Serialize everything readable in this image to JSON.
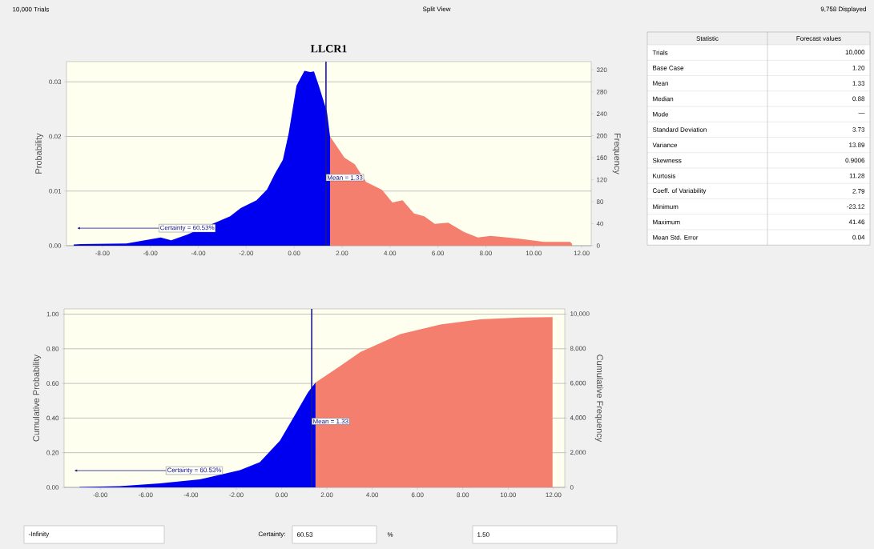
{
  "chart_data": [
    {
      "type": "area",
      "title": "LLCR1",
      "ylabel": "Probability",
      "y2label": "Frequency",
      "series": [
        {
          "color": "#0000f0",
          "x": [
            -9.2,
            -8.9,
            -7.0,
            -5.57,
            -5.13,
            -4.47,
            -2.67,
            -2.23,
            -1.57,
            -1.13,
            -0.8,
            -0.47,
            -0.23,
            0.1,
            0.43,
            0.67,
            0.83,
            1.03,
            1.37,
            1.5
          ],
          "values": [
            0.0002,
            0.0003,
            0.0004,
            0.0015,
            0.001,
            0.002,
            0.0054,
            0.0069,
            0.0083,
            0.0103,
            0.0132,
            0.0157,
            0.0205,
            0.0293,
            0.032,
            0.0318,
            0.0319,
            0.0293,
            0.0245,
            0.02
          ]
        },
        {
          "color": "#f47f6e",
          "x": [
            1.5,
            2.1,
            2.53,
            3.0,
            3.67,
            4.1,
            4.53,
            5.0,
            5.43,
            5.87,
            6.43,
            7.1,
            7.67,
            8.2,
            9.33,
            10.43,
            11.53,
            11.6
          ],
          "values": [
            0.02,
            0.0161,
            0.0149,
            0.0117,
            0.0102,
            0.0079,
            0.0083,
            0.0059,
            0.0054,
            0.004,
            0.0042,
            0.0025,
            0.0015,
            0.0018,
            0.0013,
            0.0007,
            0.0007,
            0.0003
          ]
        }
      ],
      "xlim": [
        -9.5,
        12.4
      ],
      "ylim": [
        0,
        0.0337
      ],
      "y2lim": [
        0,
        335
      ],
      "xticks": [
        {
          "value": -8,
          "label": "-8.00"
        },
        {
          "value": -6,
          "label": "-6.00"
        },
        {
          "value": -4,
          "label": "-4.00"
        },
        {
          "value": -2,
          "label": "-2.00"
        },
        {
          "value": 0,
          "label": "0.00"
        },
        {
          "value": 2,
          "label": "2.00"
        },
        {
          "value": 4,
          "label": "4.00"
        },
        {
          "value": 6,
          "label": "6.00"
        },
        {
          "value": 8,
          "label": "8.00"
        },
        {
          "value": 10,
          "label": "10.00"
        },
        {
          "value": 12,
          "label": "12.00"
        }
      ],
      "yticks": [
        {
          "value": 0,
          "label": "0.00"
        },
        {
          "value": 0.01,
          "label": "0.01"
        },
        {
          "value": 0.02,
          "label": "0.02"
        },
        {
          "value": 0.03,
          "label": "0.03"
        }
      ],
      "y2ticks": [
        0,
        40,
        80,
        120,
        160,
        200,
        240,
        280,
        320
      ],
      "grid": "y",
      "ref_lines": [
        {
          "axis": "x",
          "value": 1.33,
          "label": "Mean = 1.33",
          "color": "#1a1a8c"
        }
      ],
      "annotations": [
        "Certainty = 60.53%"
      ]
    },
    {
      "type": "area",
      "ylabel": "Cumulative Probability",
      "y2label": "Cumulative Frequency",
      "series": [
        {
          "color": "#0000f0",
          "x": [
            -8.92,
            -7.15,
            -5.38,
            -3.61,
            -1.84,
            -0.96,
            -0.07,
            0.64,
            1.17,
            1.5
          ],
          "values": [
            0.002,
            0.007,
            0.023,
            0.046,
            0.099,
            0.145,
            0.27,
            0.43,
            0.55,
            0.605
          ]
        },
        {
          "color": "#f47f6e",
          "x": [
            1.5,
            2.58,
            3.47,
            5.24,
            7.01,
            8.78,
            10.55,
            11.96
          ],
          "values": [
            0.605,
            0.7,
            0.78,
            0.884,
            0.94,
            0.97,
            0.98,
            0.983
          ]
        }
      ],
      "xlim": [
        -9.6,
        12.5
      ],
      "ylim": [
        0,
        1.03
      ],
      "y2lim": [
        0,
        10300
      ],
      "xticks": [
        {
          "value": -8,
          "label": "-8.00"
        },
        {
          "value": -6,
          "label": "-6.00"
        },
        {
          "value": -4,
          "label": "-4.00"
        },
        {
          "value": -2,
          "label": "-2.00"
        },
        {
          "value": 0,
          "label": "0.00"
        },
        {
          "value": 2,
          "label": "2.00"
        },
        {
          "value": 4,
          "label": "4.00"
        },
        {
          "value": 6,
          "label": "6.00"
        },
        {
          "value": 8,
          "label": "8.00"
        },
        {
          "value": 10,
          "label": "10.00"
        },
        {
          "value": 12,
          "label": "12.00"
        }
      ],
      "yticks": [
        {
          "value": 0,
          "label": "0.00"
        },
        {
          "value": 0.2,
          "label": "0.20"
        },
        {
          "value": 0.4,
          "label": "0.40"
        },
        {
          "value": 0.6,
          "label": "0.60"
        },
        {
          "value": 0.8,
          "label": "0.80"
        },
        {
          "value": 1,
          "label": "1.00"
        }
      ],
      "y2ticks": [
        0,
        {
          "value": 2000,
          "label": "2,000"
        },
        {
          "value": 4000,
          "label": "4,000"
        },
        {
          "value": 6000,
          "label": "6,000"
        },
        {
          "value": 8000,
          "label": "8,000"
        },
        {
          "value": 10000,
          "label": "10,000"
        }
      ],
      "grid": "y",
      "ref_lines": [
        {
          "axis": "x",
          "value": 1.33,
          "label": "Mean = 1.33",
          "color": "#1a1a8c"
        }
      ],
      "annotations": [
        "Certainty = 60.53%",
        "-Infinity",
        "Certainty:",
        "60.53",
        "%",
        "1.50"
      ]
    },
    {
      "type": "other",
      "categories": [
        "Trials",
        "Base Case",
        "Mean",
        "Median",
        "Mode",
        "Standard Deviation",
        "Variance",
        "Skewness",
        "Kurtosis",
        "Coeff. of Variability",
        "Minimum",
        "Maximum",
        "Mean Std. Error"
      ],
      "value_labels": [
        "10,000",
        "1.20",
        "1.33",
        "0.88",
        "—",
        "3.73",
        "13.89",
        "0.9006",
        "11.28",
        "2.79",
        "-23.12",
        "41.46",
        "0.04"
      ],
      "annotations": [
        "10,000 Trials",
        "Split View",
        "9,758 Displayed",
        "Statistic",
        "Forecast values"
      ]
    }
  ]
}
